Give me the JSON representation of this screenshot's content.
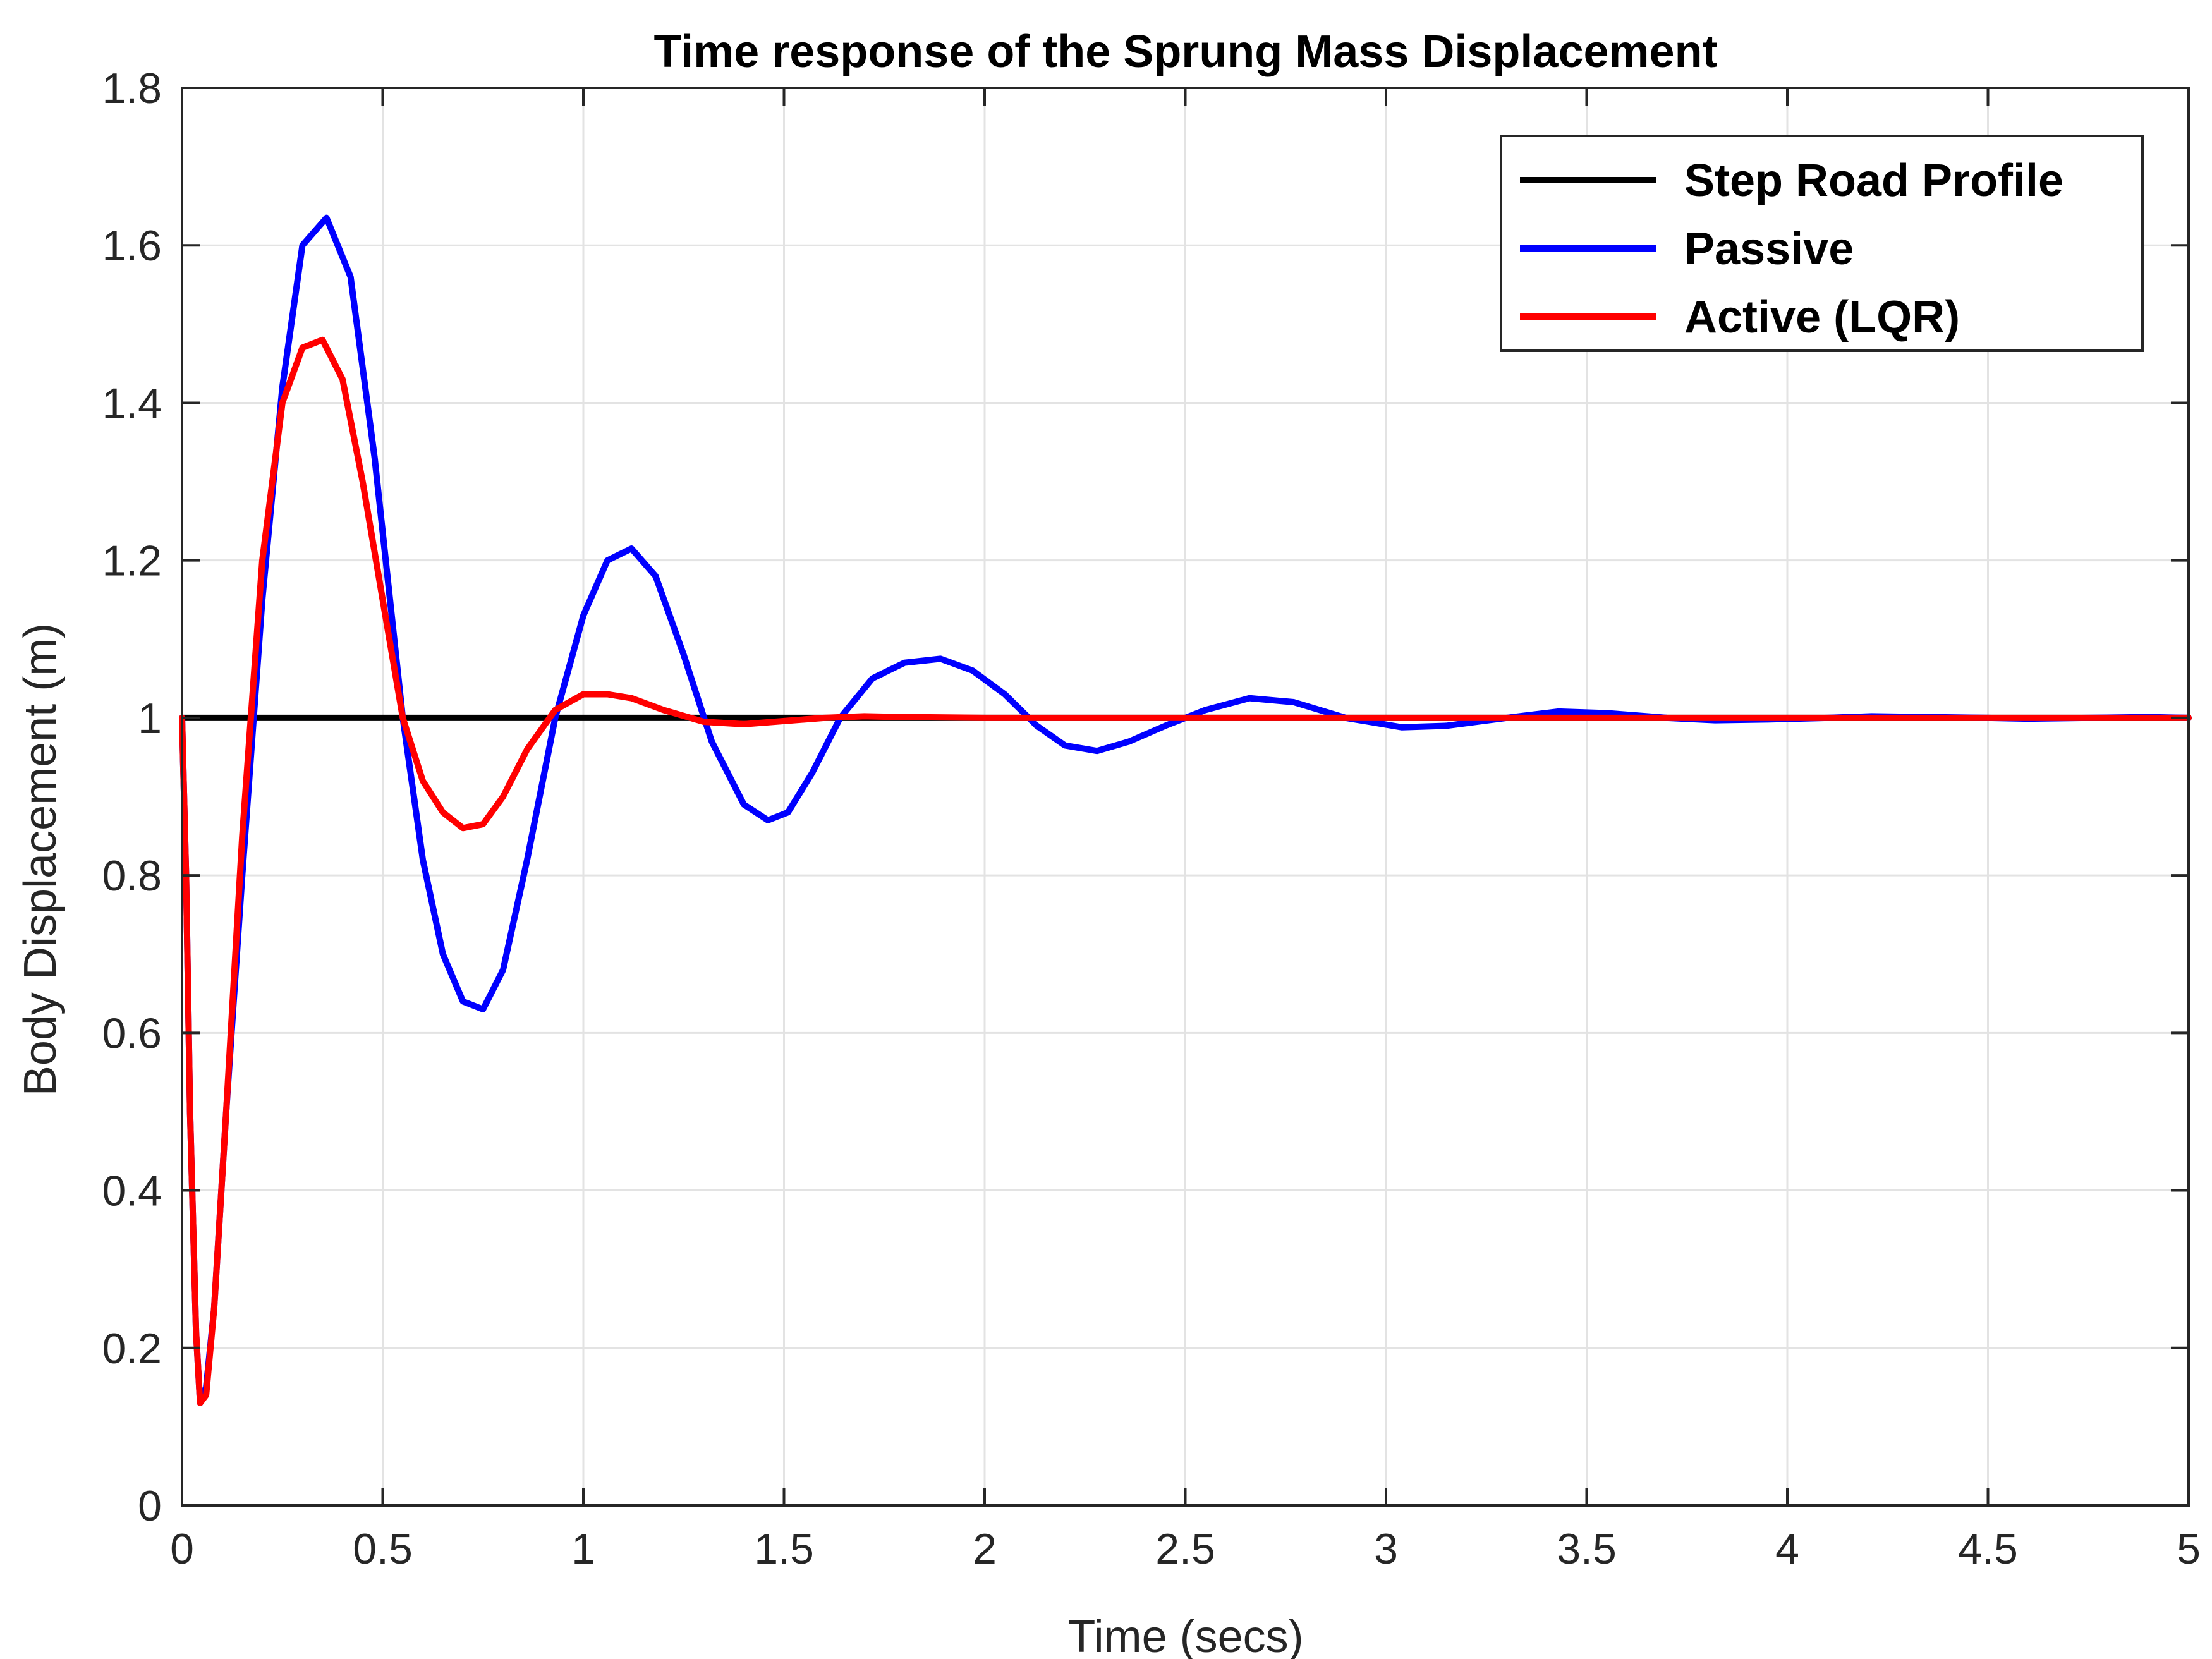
{
  "chart_data": {
    "type": "line",
    "title": "Time response of the Sprung Mass Displacement",
    "xlabel": "Time (secs)",
    "ylabel": "Body Displacement (m)",
    "xlim": [
      0,
      5
    ],
    "ylim": [
      0,
      1.8
    ],
    "xticks": [
      0,
      0.5,
      1,
      1.5,
      2,
      2.5,
      3,
      3.5,
      4,
      4.5,
      5
    ],
    "xtick_labels": [
      "0",
      "0.5",
      "1",
      "1.5",
      "2",
      "2.5",
      "3",
      "3.5",
      "4",
      "4.5",
      "5"
    ],
    "yticks": [
      0,
      0.2,
      0.4,
      0.6,
      0.8,
      1,
      1.2,
      1.4,
      1.6,
      1.8
    ],
    "ytick_labels": [
      "0",
      "0.2",
      "0.4",
      "0.6",
      "0.8",
      "1",
      "1.2",
      "1.4",
      "1.6",
      "1.8"
    ],
    "grid": true,
    "legend_position": "top-right",
    "series": [
      {
        "name": "Step Road Profile",
        "color": "#000000",
        "x": [
          0,
          5
        ],
        "y": [
          1,
          1
        ]
      },
      {
        "name": "Passive",
        "color": "#0000ff",
        "x": [
          0,
          0.01,
          0.02,
          0.035,
          0.045,
          0.06,
          0.08,
          0.11,
          0.15,
          0.2,
          0.25,
          0.3,
          0.36,
          0.42,
          0.48,
          0.55,
          0.6,
          0.65,
          0.7,
          0.75,
          0.8,
          0.86,
          0.93,
          1.0,
          1.06,
          1.12,
          1.18,
          1.25,
          1.32,
          1.4,
          1.46,
          1.51,
          1.57,
          1.64,
          1.72,
          1.8,
          1.89,
          1.97,
          2.05,
          2.13,
          2.2,
          2.28,
          2.36,
          2.45,
          2.55,
          2.66,
          2.77,
          2.9,
          3.04,
          3.15,
          3.3,
          3.43,
          3.55,
          3.7,
          3.82,
          3.95,
          4.1,
          4.21,
          4.35,
          4.5,
          4.6,
          4.75,
          4.9,
          5.0
        ],
        "y": [
          1,
          0.8,
          0.5,
          0.22,
          0.13,
          0.15,
          0.25,
          0.5,
          0.8,
          1.15,
          1.42,
          1.6,
          1.635,
          1.56,
          1.33,
          1.0,
          0.82,
          0.7,
          0.64,
          0.63,
          0.68,
          0.82,
          1.0,
          1.13,
          1.2,
          1.215,
          1.18,
          1.08,
          0.97,
          0.89,
          0.87,
          0.88,
          0.93,
          1.0,
          1.05,
          1.07,
          1.075,
          1.06,
          1.03,
          0.99,
          0.965,
          0.958,
          0.97,
          0.99,
          1.01,
          1.025,
          1.02,
          1.0,
          0.988,
          0.99,
          1.0,
          1.008,
          1.006,
          1.0,
          0.997,
          0.998,
          1.0,
          1.002,
          1.001,
          1.0,
          0.999,
          1.0,
          1.001,
          1.0
        ]
      },
      {
        "name": "Active (LQR)",
        "color": "#ff0000",
        "x": [
          0,
          0.01,
          0.02,
          0.035,
          0.045,
          0.06,
          0.08,
          0.11,
          0.15,
          0.2,
          0.25,
          0.3,
          0.35,
          0.4,
          0.45,
          0.5,
          0.55,
          0.6,
          0.65,
          0.7,
          0.75,
          0.8,
          0.86,
          0.93,
          1.0,
          1.06,
          1.12,
          1.2,
          1.3,
          1.4,
          1.5,
          1.6,
          1.7,
          1.8,
          2.0,
          2.5,
          3.0,
          4.0,
          5.0
        ],
        "y": [
          1,
          0.8,
          0.5,
          0.22,
          0.13,
          0.14,
          0.25,
          0.5,
          0.85,
          1.2,
          1.4,
          1.47,
          1.48,
          1.43,
          1.3,
          1.15,
          1.0,
          0.92,
          0.88,
          0.86,
          0.865,
          0.9,
          0.96,
          1.01,
          1.03,
          1.03,
          1.025,
          1.01,
          0.995,
          0.992,
          0.996,
          1.0,
          1.002,
          1.001,
          1.0,
          1.0,
          1.0,
          1.0,
          1.0
        ]
      }
    ]
  }
}
